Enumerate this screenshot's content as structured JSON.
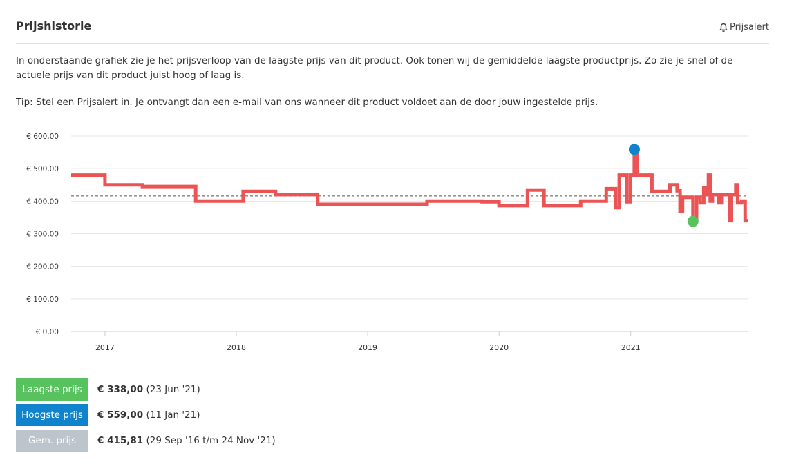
{
  "header": {
    "title": "Prijshistorie",
    "alert_label": "Prijsalert"
  },
  "description": {
    "p1": "In onderstaande grafiek zie je het prijsverloop van de laagste prijs van dit product. Ook tonen wij de gemiddelde laagste productprijs. Zo zie je snel of de actuele prijs van dit product juist hoog of laag is.",
    "p2": "Tip: Stel een Prijsalert in. Je ontvangt dan een e-mail van ons wanneer dit product voldoet aan de door jouw ingestelde prijs."
  },
  "chart_data": {
    "type": "line",
    "line_style": "step",
    "x_range": [
      "2016-09-29",
      "2021-11-24"
    ],
    "ylim": [
      0,
      600
    ],
    "y_ticks": [
      0,
      100,
      200,
      300,
      400,
      500,
      600
    ],
    "y_tick_labels": [
      "€ 0,00",
      "€ 100,00",
      "€ 200,00",
      "€ 300,00",
      "€ 400,00",
      "€ 500,00",
      "€ 600,00"
    ],
    "x_tick_labels": [
      "2017",
      "2018",
      "2019",
      "2020",
      "2021"
    ],
    "x_tick_dates": [
      "2017-01-01",
      "2018-01-01",
      "2019-01-01",
      "2020-01-01",
      "2021-01-01"
    ],
    "grid": true,
    "average": 415.81,
    "series": [
      {
        "color": "#ea5455",
        "points": [
          [
            "2016-09-29",
            480
          ],
          [
            "2017-01-01",
            450
          ],
          [
            "2017-04-15",
            445
          ],
          [
            "2017-09-10",
            400
          ],
          [
            "2018-01-20",
            430
          ],
          [
            "2018-04-20",
            420
          ],
          [
            "2018-08-15",
            390
          ],
          [
            "2019-06-15",
            400
          ],
          [
            "2019-11-15",
            398
          ],
          [
            "2020-01-01",
            386
          ],
          [
            "2020-03-20",
            434
          ],
          [
            "2020-05-05",
            386
          ],
          [
            "2020-08-15",
            400
          ],
          [
            "2020-10-25",
            438
          ],
          [
            "2020-11-20",
            380
          ],
          [
            "2020-11-30",
            480
          ],
          [
            "2020-12-20",
            398
          ],
          [
            "2020-12-30",
            480
          ],
          [
            "2021-01-11",
            559
          ],
          [
            "2021-01-18",
            480
          ],
          [
            "2021-03-01",
            430
          ],
          [
            "2021-04-20",
            450
          ],
          [
            "2021-05-10",
            432
          ],
          [
            "2021-05-18",
            368
          ],
          [
            "2021-05-25",
            412
          ],
          [
            "2021-06-23",
            338
          ],
          [
            "2021-07-03",
            412
          ],
          [
            "2021-07-13",
            395
          ],
          [
            "2021-07-23",
            440
          ],
          [
            "2021-07-30",
            420
          ],
          [
            "2021-08-05",
            480
          ],
          [
            "2021-08-10",
            400
          ],
          [
            "2021-08-16",
            420
          ],
          [
            "2021-09-03",
            395
          ],
          [
            "2021-09-12",
            420
          ],
          [
            "2021-10-03",
            340
          ],
          [
            "2021-10-08",
            420
          ],
          [
            "2021-10-20",
            450
          ],
          [
            "2021-10-25",
            395
          ],
          [
            "2021-11-05",
            400
          ],
          [
            "2021-11-15",
            340
          ]
        ]
      }
    ],
    "markers": [
      {
        "date": "2021-01-11",
        "value": 559,
        "color": "#0f83cc"
      },
      {
        "date": "2021-06-23",
        "value": 338,
        "color": "#58c25f"
      }
    ]
  },
  "legend": {
    "low": {
      "label": "Laagste prijs",
      "value": "€ 338,00",
      "note": "(23 Jun '21)",
      "color": "#58c25f"
    },
    "high": {
      "label": "Hoogste prijs",
      "value": "€ 559,00",
      "note": "(11 Jan '21)",
      "color": "#0f83cc"
    },
    "avg": {
      "label": "Gem. prijs",
      "value": "€ 415,81",
      "note": "(29 Sep '16 t/m 24 Nov '21)",
      "color": "#bcc4cc"
    }
  }
}
